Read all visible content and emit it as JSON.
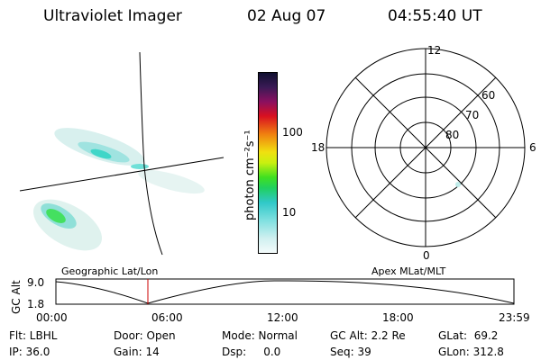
{
  "header": {
    "title": "Ultraviolet Imager",
    "date": "02 Aug 07",
    "time": "04:55:40 UT"
  },
  "colorbar": {
    "label": "photon cm⁻²s⁻¹",
    "ticks": [
      "100",
      "10"
    ]
  },
  "polar_plot": {
    "mlt_labels": [
      "12",
      "18",
      "6",
      "0"
    ],
    "lat_labels": [
      "60",
      "70",
      "80"
    ]
  },
  "panels": {
    "left_caption": "Geographic Lat/Lon",
    "right_caption": "Apex MLat/MLT"
  },
  "timeline": {
    "ylabel": "GC Alt",
    "ytick_top": "9.0",
    "ytick_bottom": "1.8",
    "xticks": [
      "00:00",
      "06:00",
      "12:00",
      "18:00",
      "23:59"
    ],
    "marker_color": "#cc0000",
    "curve_color": "#000000"
  },
  "info": {
    "col1": [
      "Flt: LBHL",
      "IP: 36.0"
    ],
    "col2": [
      "Door: Open",
      "Gain: 14"
    ],
    "col3": [
      "Mode: Normal",
      "Dsp:     0.0"
    ],
    "col4": [
      "GC Alt: 2.2 Re",
      "Seq: 39"
    ],
    "col5": [
      "GLat:  69.2",
      "GLon: 312.8"
    ]
  }
}
